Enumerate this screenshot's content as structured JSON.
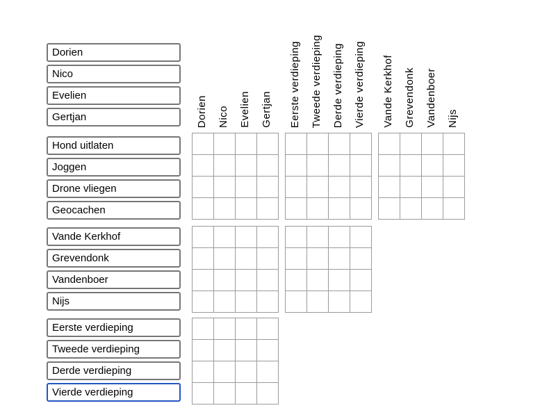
{
  "left_groups": [
    {
      "name": "names",
      "items": [
        "Dorien",
        "Nico",
        "Evelien",
        "Gertjan"
      ]
    },
    {
      "name": "activities",
      "items": [
        "Hond uitlaten",
        "Joggen",
        "Drone vliegen",
        "Geocachen"
      ]
    },
    {
      "name": "surnames",
      "items": [
        "Vande Kerkhof",
        "Grevendonk",
        "Vandenboer",
        "Nijs"
      ]
    },
    {
      "name": "floors",
      "items": [
        "Eerste verdieping",
        "Tweede verdieping",
        "Derde verdieping",
        "Vierde verdieping"
      ]
    }
  ],
  "column_groups": [
    {
      "name": "names",
      "items": [
        "Dorien",
        "Nico",
        "Evelien",
        "Gertjan"
      ]
    },
    {
      "name": "floors",
      "items": [
        "Eerste verdieping",
        "Tweede verdieping",
        "Derde verdieping",
        "Vierde verdieping"
      ]
    },
    {
      "name": "surnames",
      "items": [
        "Vande Kerkhof",
        "Grevendonk",
        "Vandenboer",
        "Nijs"
      ]
    }
  ],
  "selected": {
    "group_index": 3,
    "item_index": 3,
    "label": "Vierde verdieping"
  },
  "grid": {
    "rows_per_block": 4,
    "cols_per_block": 4,
    "all_cells_empty": true,
    "blocks": [
      {
        "row_group": "activities",
        "col_group": "names"
      },
      {
        "row_group": "activities",
        "col_group": "floors"
      },
      {
        "row_group": "activities",
        "col_group": "surnames"
      },
      {
        "row_group": "surnames",
        "col_group": "names"
      },
      {
        "row_group": "surnames",
        "col_group": "floors"
      },
      {
        "row_group": "floors",
        "col_group": "names"
      }
    ]
  },
  "colors": {
    "background": "#ffffff",
    "text": "#000000",
    "box_border": "#767676",
    "selected_border": "#2455c4",
    "grid_border": "#9b9b9b"
  }
}
